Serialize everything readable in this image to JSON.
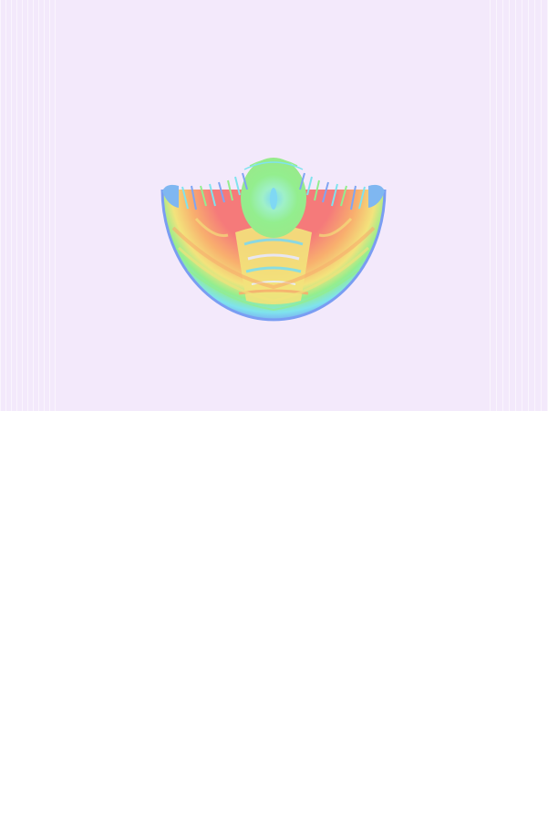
{
  "image": {
    "subject": "fractal-wavefront-dome",
    "background_color": "#f3e9fb",
    "lower_area_color": "#ffffff",
    "palette": {
      "outer_blue": "#7a9df2",
      "cyan": "#7fe3ee",
      "green": "#93ee8e",
      "yellow": "#f3e37c",
      "orange": "#f8b06e",
      "red": "#f57a7a",
      "center_cyan": "#7fd8f4"
    }
  }
}
